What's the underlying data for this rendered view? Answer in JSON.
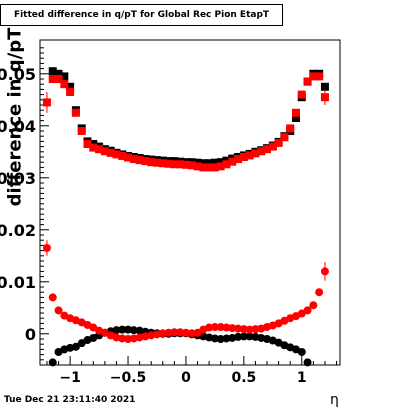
{
  "chart_data": {
    "type": "scatter",
    "title": "Fitted difference in q/pT for Global Rec Pion EtapT",
    "xlabel": "η",
    "ylabel": "difference in q/pT",
    "xlim": [
      -1.26,
      1.33
    ],
    "ylim": [
      -0.006,
      0.0565
    ],
    "x_ticks": [
      -1,
      -0.5,
      0,
      0.5,
      1
    ],
    "x_tick_labels": [
      "−1",
      "−0.5",
      "0",
      "0.5",
      "1"
    ],
    "y_ticks": [
      0,
      0.01,
      0.02,
      0.03,
      0.04,
      0.05
    ],
    "y_tick_labels": [
      "0",
      "0.01",
      "0.02",
      "0.03",
      "0.04",
      "0.05"
    ],
    "timestamp": "Tue Dec 21 23:11:40 2021",
    "series": [
      {
        "color": "#000000",
        "marker": "square",
        "x": [
          -1.15,
          -1.1,
          -1.05,
          -1.0,
          -0.95,
          -0.9,
          -0.85,
          -0.8,
          -0.75,
          -0.7,
          -0.65,
          -0.6,
          -0.55,
          -0.5,
          -0.45,
          -0.4,
          -0.35,
          -0.3,
          -0.25,
          -0.2,
          -0.15,
          -0.1,
          -0.05,
          0.0,
          0.05,
          0.1,
          0.15,
          0.2,
          0.25,
          0.3,
          0.35,
          0.4,
          0.45,
          0.5,
          0.55,
          0.6,
          0.65,
          0.7,
          0.75,
          0.8,
          0.85,
          0.9,
          0.95,
          1.0,
          1.05,
          1.1,
          1.15,
          1.2
        ],
        "y": [
          0.0505,
          0.05,
          0.0495,
          0.0475,
          0.043,
          0.0395,
          0.037,
          0.0365,
          0.036,
          0.0355,
          0.0352,
          0.0348,
          0.0345,
          0.0342,
          0.034,
          0.0338,
          0.0336,
          0.0335,
          0.0334,
          0.0333,
          0.0332,
          0.0332,
          0.0331,
          0.033,
          0.033,
          0.0329,
          0.0328,
          0.0328,
          0.0329,
          0.033,
          0.0333,
          0.0337,
          0.034,
          0.0343,
          0.0346,
          0.035,
          0.0353,
          0.0357,
          0.0362,
          0.0369,
          0.038,
          0.039,
          0.0415,
          0.0455,
          0.0485,
          0.05,
          0.05,
          0.0475
        ],
        "markers_only": true
      },
      {
        "color": "#ff0000",
        "marker": "square",
        "x": [
          -1.2,
          -1.15,
          -1.1,
          -1.05,
          -1.0,
          -0.95,
          -0.9,
          -0.85,
          -0.8,
          -0.75,
          -0.7,
          -0.65,
          -0.6,
          -0.55,
          -0.5,
          -0.45,
          -0.4,
          -0.35,
          -0.3,
          -0.25,
          -0.2,
          -0.15,
          -0.1,
          -0.05,
          0.0,
          0.05,
          0.1,
          0.15,
          0.2,
          0.25,
          0.3,
          0.35,
          0.4,
          0.45,
          0.5,
          0.55,
          0.6,
          0.65,
          0.7,
          0.75,
          0.8,
          0.85,
          0.9,
          0.95,
          1.0,
          1.05,
          1.1,
          1.15,
          1.2
        ],
        "y": [
          0.0445,
          0.049,
          0.049,
          0.048,
          0.0465,
          0.0425,
          0.039,
          0.0365,
          0.0358,
          0.0355,
          0.0351,
          0.0348,
          0.0345,
          0.0342,
          0.0339,
          0.0336,
          0.0334,
          0.0332,
          0.033,
          0.0329,
          0.0328,
          0.0327,
          0.0326,
          0.0326,
          0.0325,
          0.0324,
          0.0322,
          0.032,
          0.032,
          0.032,
          0.0322,
          0.0326,
          0.0331,
          0.0336,
          0.034,
          0.0343,
          0.0347,
          0.0351,
          0.0355,
          0.036,
          0.0367,
          0.0378,
          0.0395,
          0.0425,
          0.046,
          0.0485,
          0.0495,
          0.0495,
          0.0455
        ],
        "y_err": [
          0.002,
          0.0005,
          0.0003,
          0.0003,
          0.0003,
          0.0003,
          0.0003,
          0.0003,
          0.0003,
          0.0003,
          0.0003,
          0.0003,
          0.0003,
          0.0003,
          0.0003,
          0.0003,
          0.0003,
          0.0003,
          0.0003,
          0.0003,
          0.0003,
          0.0003,
          0.0003,
          0.0003,
          0.0003,
          0.0003,
          0.0003,
          0.0003,
          0.0003,
          0.0003,
          0.0003,
          0.0003,
          0.0003,
          0.0003,
          0.0003,
          0.0003,
          0.0003,
          0.0003,
          0.0003,
          0.0003,
          0.0003,
          0.0003,
          0.0003,
          0.0003,
          0.0003,
          0.0003,
          0.0003,
          0.0003,
          0.0015
        ],
        "markers_only": true
      },
      {
        "color": "#000000",
        "marker": "circle",
        "x": [
          -1.15,
          -1.1,
          -1.05,
          -1.0,
          -0.95,
          -0.9,
          -0.85,
          -0.8,
          -0.75,
          -0.7,
          -0.65,
          -0.6,
          -0.55,
          -0.5,
          -0.45,
          -0.4,
          -0.35,
          -0.3,
          -0.25,
          -0.2,
          -0.15,
          -0.1,
          -0.05,
          0.0,
          0.05,
          0.1,
          0.15,
          0.2,
          0.25,
          0.3,
          0.35,
          0.4,
          0.45,
          0.5,
          0.55,
          0.6,
          0.65,
          0.7,
          0.75,
          0.8,
          0.85,
          0.9,
          0.95,
          1.0,
          1.05,
          1.1
        ],
        "y": [
          -0.0055,
          -0.0035,
          -0.003,
          -0.0027,
          -0.0025,
          -0.0018,
          -0.0012,
          -0.0008,
          -0.0003,
          0.0002,
          0.0005,
          0.0007,
          0.0008,
          0.0008,
          0.0007,
          0.0006,
          0.0004,
          0.0002,
          0.0001,
          0.0,
          0.0,
          0.0001,
          0.0001,
          0.0001,
          -0.0001,
          -0.0003,
          -0.0005,
          -0.0007,
          -0.0009,
          -0.001,
          -0.0009,
          -0.0008,
          -0.0006,
          -0.0005,
          -0.0005,
          -0.0006,
          -0.0008,
          -0.001,
          -0.0013,
          -0.0017,
          -0.0022,
          -0.0026,
          -0.003,
          -0.0035,
          -0.0055,
          -0.0065
        ],
        "markers_only": true
      },
      {
        "color": "#ff0000",
        "marker": "circle",
        "x": [
          -1.2,
          -1.15,
          -1.1,
          -1.05,
          -1.0,
          -0.95,
          -0.9,
          -0.85,
          -0.8,
          -0.75,
          -0.7,
          -0.65,
          -0.6,
          -0.55,
          -0.5,
          -0.45,
          -0.4,
          -0.35,
          -0.3,
          -0.25,
          -0.2,
          -0.15,
          -0.1,
          -0.05,
          0.0,
          0.05,
          0.1,
          0.15,
          0.2,
          0.25,
          0.3,
          0.35,
          0.4,
          0.45,
          0.5,
          0.55,
          0.6,
          0.65,
          0.7,
          0.75,
          0.8,
          0.85,
          0.9,
          0.95,
          1.0,
          1.05,
          1.1,
          1.15,
          1.2
        ],
        "y": [
          0.0165,
          0.007,
          0.0045,
          0.0035,
          0.003,
          0.0026,
          0.0022,
          0.0017,
          0.0012,
          0.0006,
          0.0002,
          -0.0003,
          -0.0007,
          -0.0009,
          -0.001,
          -0.0009,
          -0.0007,
          -0.0005,
          -0.0003,
          -0.0001,
          0.0001,
          0.0002,
          0.0003,
          0.0003,
          0.0002,
          0.0001,
          0.0002,
          0.0008,
          0.0012,
          0.0013,
          0.0013,
          0.0012,
          0.0011,
          0.001,
          0.0009,
          0.0008,
          0.0009,
          0.001,
          0.0013,
          0.0016,
          0.002,
          0.0025,
          0.003,
          0.0034,
          0.0039,
          0.0045,
          0.0055,
          0.008,
          0.012
        ],
        "y_err": [
          0.0015,
          0.0004,
          0.0003,
          0.0003,
          0.0003,
          0.0003,
          0.0003,
          0.0003,
          0.0003,
          0.0003,
          0.0003,
          0.0003,
          0.0003,
          0.0003,
          0.0003,
          0.0003,
          0.0003,
          0.0003,
          0.0003,
          0.0003,
          0.0003,
          0.0003,
          0.0003,
          0.0003,
          0.0003,
          0.0003,
          0.0003,
          0.0003,
          0.0003,
          0.0003,
          0.0003,
          0.0003,
          0.0003,
          0.0003,
          0.0003,
          0.0003,
          0.0003,
          0.0003,
          0.0003,
          0.0003,
          0.0003,
          0.0003,
          0.0003,
          0.0003,
          0.0003,
          0.0003,
          0.0003,
          0.0006,
          0.0018
        ],
        "markers_only": true
      }
    ]
  }
}
